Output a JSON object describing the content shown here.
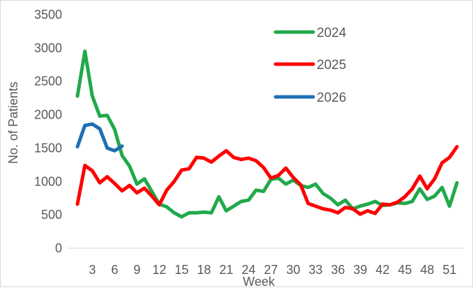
{
  "chart_data": {
    "type": "line",
    "xlabel": "Week",
    "ylabel": "No. of Patients",
    "ylim": [
      0,
      3500
    ],
    "yticks": [
      0,
      500,
      1000,
      1500,
      2000,
      2500,
      3000,
      3500
    ],
    "xticks": [
      3,
      6,
      9,
      12,
      15,
      18,
      21,
      24,
      27,
      30,
      33,
      36,
      39,
      42,
      45,
      48,
      51
    ],
    "x_range": [
      1,
      52
    ],
    "grid": false,
    "legend_position": "top-right",
    "series": [
      {
        "name": "2024",
        "color": "#21a94a",
        "x": [
          1,
          2,
          3,
          4,
          5,
          6,
          7,
          8,
          9,
          10,
          11,
          12,
          13,
          14,
          15,
          16,
          17,
          18,
          19,
          20,
          21,
          22,
          23,
          24,
          25,
          26,
          27,
          28,
          29,
          30,
          31,
          32,
          33,
          34,
          35,
          36,
          37,
          38,
          39,
          40,
          41,
          42,
          43,
          44,
          45,
          46,
          47,
          48,
          49,
          50,
          51,
          52
        ],
        "values": [
          2280,
          2950,
          2280,
          1980,
          1990,
          1780,
          1390,
          1230,
          960,
          1040,
          850,
          660,
          620,
          530,
          470,
          530,
          530,
          540,
          530,
          770,
          560,
          630,
          700,
          720,
          870,
          850,
          1030,
          1050,
          960,
          1020,
          940,
          910,
          960,
          820,
          750,
          650,
          720,
          590,
          630,
          660,
          700,
          640,
          650,
          680,
          670,
          700,
          890,
          730,
          780,
          910,
          630,
          980
        ]
      },
      {
        "name": "2025",
        "color": "#ff0000",
        "x": [
          1,
          2,
          3,
          4,
          5,
          6,
          7,
          8,
          9,
          10,
          11,
          12,
          13,
          14,
          15,
          16,
          17,
          18,
          19,
          20,
          21,
          22,
          23,
          24,
          25,
          26,
          27,
          28,
          29,
          30,
          31,
          32,
          33,
          34,
          35,
          36,
          37,
          38,
          39,
          40,
          41,
          42,
          43,
          44,
          45,
          46,
          47,
          48,
          49,
          50,
          51,
          52
        ],
        "values": [
          660,
          1240,
          1160,
          980,
          1070,
          970,
          860,
          940,
          830,
          900,
          780,
          650,
          870,
          1000,
          1170,
          1190,
          1360,
          1350,
          1290,
          1380,
          1460,
          1360,
          1330,
          1350,
          1310,
          1210,
          1050,
          1090,
          1200,
          1060,
          950,
          670,
          630,
          590,
          570,
          530,
          610,
          590,
          510,
          560,
          520,
          660,
          650,
          690,
          770,
          890,
          1080,
          890,
          1040,
          1280,
          1360,
          1520
        ]
      },
      {
        "name": "2026",
        "color": "#1f6fb5",
        "x": [
          1,
          2,
          3,
          4,
          5,
          6,
          7
        ],
        "values": [
          1520,
          1840,
          1860,
          1790,
          1500,
          1460,
          1530
        ]
      }
    ]
  }
}
